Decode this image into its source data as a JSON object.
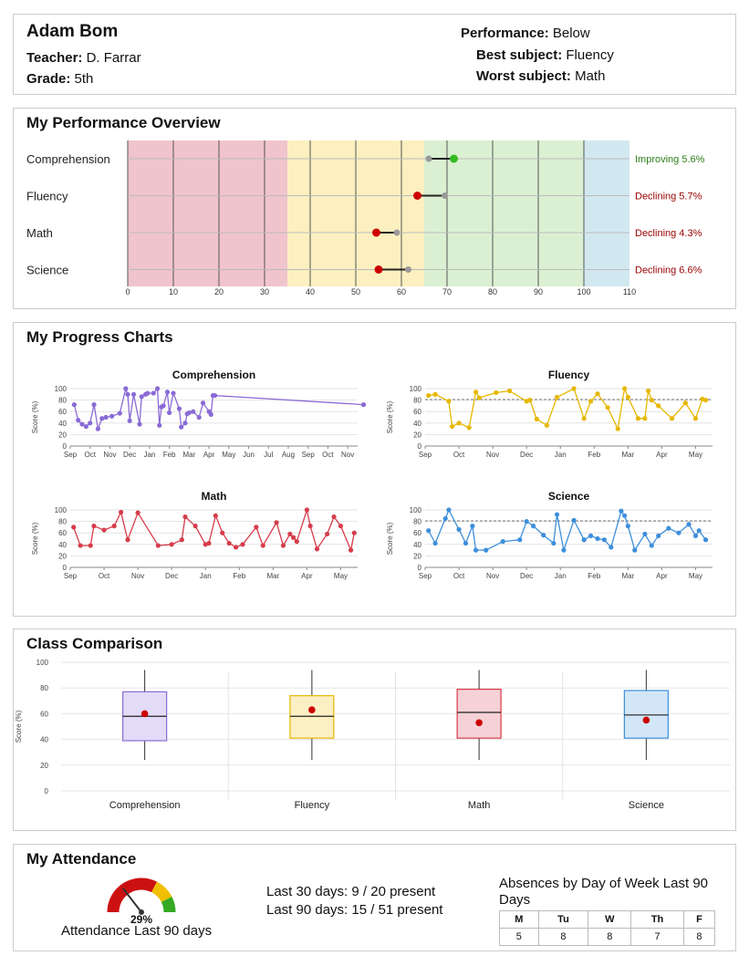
{
  "header": {
    "student_name": "Adam Bom",
    "teacher_label": "Teacher:",
    "teacher": "D. Farrar",
    "grade_label": "Grade:",
    "grade": "5th",
    "performance_label": "Performance:",
    "performance": "Below",
    "best_label": "Best subject:",
    "best": "Fluency",
    "worst_label": "Worst subject:",
    "worst": "Math"
  },
  "overview": {
    "title": "My Performance Overview",
    "bands": [
      {
        "from": 0,
        "to": 35,
        "color": "#f0c4cd"
      },
      {
        "from": 35,
        "to": 65,
        "color": "#fcf0c0"
      },
      {
        "from": 65,
        "to": 100,
        "color": "#dbf0d2"
      },
      {
        "from": 100,
        "to": 110,
        "color": "#d2e8f0"
      }
    ],
    "axis_ticks": [
      "0",
      "10",
      "20",
      "30",
      "40",
      "50",
      "60",
      "70",
      "80",
      "90",
      "100",
      "110"
    ],
    "subjects": [
      {
        "name": "Comprehension",
        "from": 66,
        "to": 71.5,
        "status": "Improving 5.6%",
        "status_color": "#2e7d1a",
        "dot_color": "#33bb22"
      },
      {
        "name": "Fluency",
        "from": 69.5,
        "to": 63.5,
        "status": "Declining 5.7%",
        "status_color": "#990000",
        "dot_color": "#cc0000"
      },
      {
        "name": "Math",
        "from": 59,
        "to": 54.5,
        "status": "Declining 4.3%",
        "status_color": "#990000",
        "dot_color": "#cc0000"
      },
      {
        "name": "Science",
        "from": 61.5,
        "to": 55,
        "status": "Declining 6.6%",
        "status_color": "#990000",
        "dot_color": "#cc0000"
      }
    ]
  },
  "progress": {
    "title": "My Progress Charts",
    "y_label": "Score (%)",
    "y_ticks": [
      "0",
      "20",
      "40",
      "60",
      "80",
      "100"
    ]
  },
  "chart_data": [
    {
      "type": "line",
      "title": "Comprehension",
      "color": "#8a6ad6",
      "xlabel": "",
      "ylabel": "Score (%)",
      "ylim": [
        0,
        100
      ],
      "x_ticks": [
        "Sep",
        "Oct",
        "Nov",
        "Dec",
        "Jan",
        "Feb",
        "Mar",
        "Apr",
        "May",
        "Jun",
        "Jul",
        "Aug",
        "Sep",
        "Oct",
        "Nov"
      ],
      "benchmark": null,
      "x": [
        0.2,
        0.4,
        0.6,
        0.8,
        1.0,
        1.2,
        1.4,
        1.6,
        1.8,
        2.1,
        2.5,
        2.8,
        2.9,
        3.0,
        3.2,
        3.5,
        3.6,
        3.8,
        3.9,
        4.2,
        4.4,
        4.5,
        4.6,
        4.7,
        4.9,
        5.0,
        5.2,
        5.5,
        5.6,
        5.8,
        5.9,
        6.0,
        6.2,
        6.5,
        6.7,
        7.0,
        7.1,
        7.2,
        7.3,
        14.8
      ],
      "y": [
        72,
        45,
        38,
        34,
        40,
        72,
        30,
        48,
        50,
        52,
        57,
        100,
        90,
        44,
        90,
        38,
        86,
        90,
        92,
        92,
        100,
        36,
        68,
        70,
        94,
        58,
        92,
        65,
        33,
        40,
        56,
        58,
        60,
        50,
        75,
        60,
        55,
        88,
        88,
        72
      ]
    },
    {
      "type": "line",
      "title": "Fluency",
      "color": "#e6b800",
      "xlabel": "",
      "ylabel": "Score (%)",
      "ylim": [
        0,
        100
      ],
      "x_ticks": [
        "Sep",
        "Oct",
        "Nov",
        "Dec",
        "Jan",
        "Feb",
        "Mar",
        "Apr",
        "May"
      ],
      "benchmark": 81,
      "x": [
        0.1,
        0.3,
        0.7,
        0.8,
        1.0,
        1.3,
        1.5,
        1.6,
        2.1,
        2.5,
        3.0,
        3.1,
        3.3,
        3.6,
        3.9,
        4.4,
        4.7,
        4.9,
        5.1,
        5.4,
        5.7,
        5.9,
        6.0,
        6.3,
        6.5,
        6.6,
        6.7,
        6.9,
        7.3,
        7.7,
        8.0,
        8.2,
        8.3
      ],
      "y": [
        88,
        90,
        78,
        34,
        40,
        32,
        94,
        84,
        93,
        96,
        78,
        80,
        47,
        36,
        85,
        100,
        48,
        78,
        91,
        67,
        30,
        100,
        85,
        48,
        48,
        96,
        80,
        70,
        48,
        75,
        48,
        82,
        80
      ]
    },
    {
      "type": "line",
      "title": "Math",
      "color": "#d63c4a",
      "xlabel": "",
      "ylabel": "Score (%)",
      "ylim": [
        0,
        100
      ],
      "x_ticks": [
        "Sep",
        "Oct",
        "Nov",
        "Dec",
        "Jan",
        "Feb",
        "Mar",
        "Apr",
        "May"
      ],
      "benchmark": null,
      "x": [
        0.1,
        0.3,
        0.6,
        0.7,
        1.0,
        1.3,
        1.5,
        1.7,
        2.0,
        2.6,
        3.0,
        3.3,
        3.4,
        3.7,
        4.0,
        4.1,
        4.3,
        4.5,
        4.7,
        4.9,
        5.1,
        5.5,
        5.7,
        6.1,
        6.3,
        6.5,
        6.6,
        6.7,
        7.0,
        7.1,
        7.3,
        7.6,
        7.8,
        8.0,
        8.3,
        8.4
      ],
      "y": [
        70,
        38,
        38,
        72,
        65,
        72,
        96,
        48,
        95,
        38,
        40,
        48,
        88,
        72,
        40,
        42,
        90,
        60,
        42,
        35,
        40,
        70,
        38,
        78,
        38,
        58,
        52,
        45,
        100,
        72,
        32,
        58,
        88,
        72,
        30,
        60
      ]
    },
    {
      "type": "line",
      "title": "Science",
      "color": "#3d8fdb",
      "xlabel": "",
      "ylabel": "Score (%)",
      "ylim": [
        0,
        100
      ],
      "x_ticks": [
        "Sep",
        "Oct",
        "Nov",
        "Dec",
        "Jan",
        "Feb",
        "Mar",
        "Apr",
        "May"
      ],
      "benchmark": 81,
      "x": [
        0.1,
        0.3,
        0.6,
        0.7,
        1.0,
        1.2,
        1.4,
        1.5,
        1.8,
        2.3,
        2.8,
        3.0,
        3.2,
        3.5,
        3.8,
        3.9,
        4.1,
        4.4,
        4.7,
        4.9,
        5.1,
        5.3,
        5.5,
        5.8,
        5.9,
        6.0,
        6.2,
        6.5,
        6.7,
        6.9,
        7.2,
        7.5,
        7.8,
        8.0,
        8.1,
        8.3
      ],
      "y": [
        64,
        42,
        85,
        100,
        66,
        42,
        72,
        30,
        30,
        45,
        48,
        80,
        72,
        56,
        42,
        92,
        30,
        82,
        48,
        55,
        50,
        48,
        35,
        98,
        90,
        72,
        30,
        58,
        38,
        55,
        68,
        60,
        75,
        55,
        64,
        48
      ]
    },
    {
      "type": "box",
      "title": "Class Comparison",
      "xlabel": "",
      "ylabel": "Score (%)",
      "ylim": [
        0,
        100
      ],
      "y_ticks": [
        "0",
        "20",
        "40",
        "60",
        "80",
        "100"
      ],
      "categories": [
        "Comprehension",
        "Fluency",
        "Math",
        "Science"
      ],
      "series": [
        {
          "name": "Comprehension",
          "min": 24,
          "q1": 39,
          "median": 58,
          "q3": 77,
          "max": 94,
          "student": 60,
          "color": "#8a6ad6",
          "fill": "#e3dbf7"
        },
        {
          "name": "Fluency",
          "min": 24,
          "q1": 41,
          "median": 58,
          "q3": 74,
          "max": 94,
          "student": 63,
          "color": "#e6b800",
          "fill": "#fbefc4"
        },
        {
          "name": "Math",
          "min": 24,
          "q1": 41,
          "median": 61,
          "q3": 79,
          "max": 94,
          "student": 53,
          "color": "#d63c4a",
          "fill": "#f6d2d6"
        },
        {
          "name": "Science",
          "min": 24,
          "q1": 41,
          "median": 59,
          "q3": 78,
          "max": 94,
          "student": 55,
          "color": "#3d8fdb",
          "fill": "#d3e6f7"
        }
      ]
    }
  ],
  "attendance": {
    "title": "My Attendance",
    "percent_value": 29,
    "percent": "29%",
    "gauge_caption": "Attendance Last 90 days",
    "last30": "Last 30 days: 9 / 20 present",
    "last90": "Last 90 days: 15 / 51 present",
    "dow_title": "Absences by Day of Week Last 90 Days",
    "days": [
      "M",
      "Tu",
      "W",
      "Th",
      "F"
    ],
    "absences": [
      "5",
      "8",
      "8",
      "7",
      "8"
    ]
  }
}
